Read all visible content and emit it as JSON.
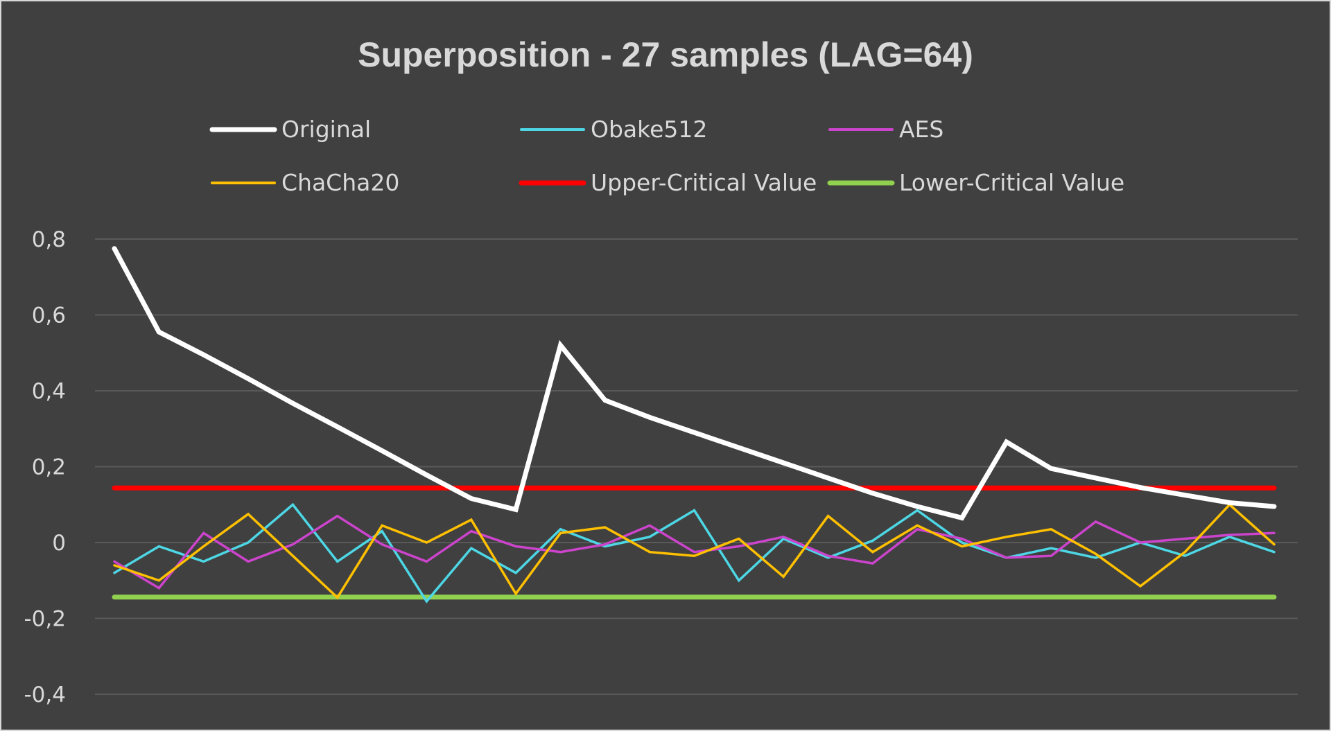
{
  "chart_data": {
    "type": "line",
    "title": "Superposition - 27 samples (LAG=64)",
    "xlabel": "",
    "ylabel": "",
    "ylim": [
      -0.4,
      0.8
    ],
    "yticks": [
      0.8,
      0.6,
      0.4,
      0.2,
      0,
      -0.2,
      -0.4
    ],
    "ytick_labels": [
      "0,8",
      "0,6",
      "0,4",
      "0,2",
      "0",
      "-0,2",
      "-0,4"
    ],
    "grid": true,
    "legend_placement": "top",
    "x": [
      1,
      2,
      3,
      4,
      5,
      6,
      7,
      8,
      9,
      10,
      11,
      12,
      13,
      14,
      15,
      16,
      17,
      18,
      19,
      20,
      21,
      22,
      23,
      24,
      25,
      26,
      27
    ],
    "series": [
      {
        "name": "Original",
        "color": "#ffffff",
        "values": [
          0.775,
          0.555,
          0.495,
          0.432,
          0.367,
          0.305,
          0.242,
          0.178,
          0.116,
          0.087,
          0.52,
          0.375,
          0.33,
          0.29,
          0.25,
          0.21,
          0.17,
          0.13,
          0.095,
          0.065,
          0.265,
          0.195,
          0.17,
          0.145,
          0.125,
          0.105,
          0.095
        ]
      },
      {
        "name": "Obake512",
        "color": "#4dd7e5",
        "values": [
          -0.08,
          -0.01,
          -0.05,
          0.0,
          0.1,
          -0.05,
          0.03,
          -0.155,
          -0.015,
          -0.08,
          0.035,
          -0.01,
          0.015,
          0.085,
          -0.1,
          0.01,
          -0.04,
          0.005,
          0.085,
          0.0,
          -0.04,
          -0.015,
          -0.04,
          0.0,
          -0.035,
          0.015,
          -0.025
        ]
      },
      {
        "name": "AES",
        "color": "#cc44cc",
        "values": [
          -0.05,
          -0.12,
          0.025,
          -0.05,
          -0.005,
          0.07,
          -0.005,
          -0.05,
          0.03,
          -0.01,
          -0.025,
          -0.005,
          0.045,
          -0.025,
          -0.01,
          0.015,
          -0.035,
          -0.055,
          0.035,
          0.01,
          -0.04,
          -0.035,
          0.055,
          0.0,
          0.01,
          0.02,
          0.025
        ]
      },
      {
        "name": "ChaCha20",
        "color": "#ffc000",
        "values": [
          -0.06,
          -0.1,
          -0.01,
          0.075,
          -0.035,
          -0.145,
          0.045,
          0.0,
          0.06,
          -0.135,
          0.025,
          0.04,
          -0.025,
          -0.035,
          0.01,
          -0.09,
          0.07,
          -0.025,
          0.045,
          -0.01,
          0.015,
          0.035,
          -0.03,
          -0.115,
          -0.025,
          0.1,
          -0.005
        ]
      },
      {
        "name": "Upper-Critical Value",
        "color": "#ff0000",
        "values": [
          0.144,
          0.144,
          0.144,
          0.144,
          0.144,
          0.144,
          0.144,
          0.144,
          0.144,
          0.144,
          0.144,
          0.144,
          0.144,
          0.144,
          0.144,
          0.144,
          0.144,
          0.144,
          0.144,
          0.144,
          0.144,
          0.144,
          0.144,
          0.144,
          0.144,
          0.144,
          0.144
        ]
      },
      {
        "name": "Lower-Critical Value",
        "color": "#92d050",
        "values": [
          -0.144,
          -0.144,
          -0.144,
          -0.144,
          -0.144,
          -0.144,
          -0.144,
          -0.144,
          -0.144,
          -0.144,
          -0.144,
          -0.144,
          -0.144,
          -0.144,
          -0.144,
          -0.144,
          -0.144,
          -0.144,
          -0.144,
          -0.144,
          -0.144,
          -0.144,
          -0.144,
          -0.144,
          -0.144,
          -0.144,
          -0.144
        ]
      }
    ]
  }
}
